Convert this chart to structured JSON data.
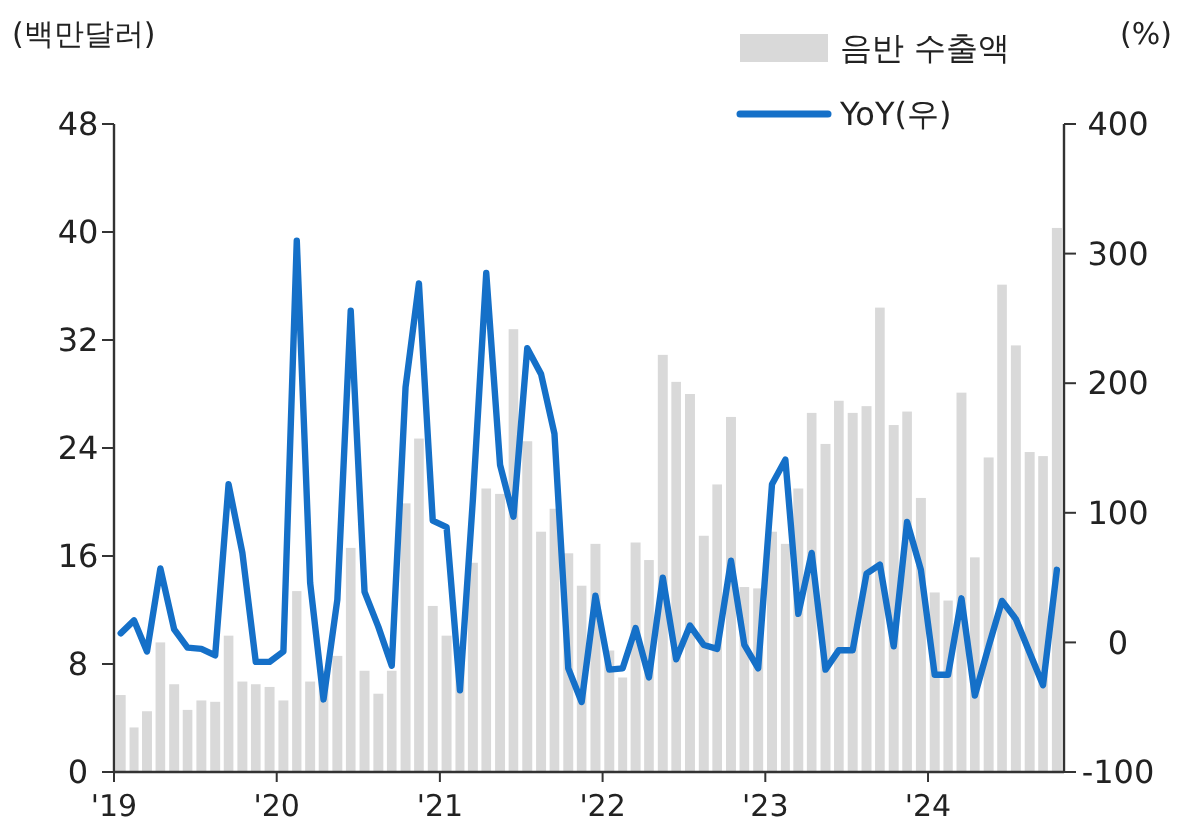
{
  "chart_data": {
    "type": "bar",
    "ylabel": "(백만달러)",
    "y2label": "(%)",
    "x": [
      "2019-01-16",
      "2019-02-15",
      "2019-03-16",
      "2019-04-15",
      "2019-05-16",
      "2019-06-15",
      "2019-07-16",
      "2019-08-16",
      "2019-09-15",
      "2019-10-16",
      "2019-11-15",
      "2019-12-16",
      "2020-01-16",
      "2020-02-15",
      "2020-03-16",
      "2020-04-15",
      "2020-05-16",
      "2020-06-15",
      "2020-07-16",
      "2020-08-16",
      "2020-09-15",
      "2020-10-16",
      "2020-11-15",
      "2020-12-16",
      "2021-01-16",
      "2021-02-15",
      "2021-03-16",
      "2021-04-15",
      "2021-05-16",
      "2021-06-15",
      "2021-07-16",
      "2021-08-16",
      "2021-09-15",
      "2021-10-16",
      "2021-11-15",
      "2021-12-16",
      "2022-01-16",
      "2022-02-15",
      "2022-03-16",
      "2022-04-15",
      "2022-05-16",
      "2022-06-15",
      "2022-07-16",
      "2022-08-16",
      "2022-09-15",
      "2022-10-16",
      "2022-11-15",
      "2022-12-16",
      "2023-01-16",
      "2023-02-15",
      "2023-03-16",
      "2023-04-15",
      "2023-05-16",
      "2023-06-15",
      "2023-07-16",
      "2023-08-16",
      "2023-09-15",
      "2023-10-16",
      "2023-11-15",
      "2023-12-16",
      "2024-01-16",
      "2024-02-15",
      "2024-03-16",
      "2024-04-15",
      "2024-05-16",
      "2024-06-15",
      "2024-07-16",
      "2024-08-16",
      "2024-09-15",
      "2024-10-16"
    ],
    "series": [
      {
        "name": "음반 수출액",
        "color": "#d9d9d9",
        "values": [
          5.7,
          3.3,
          4.5,
          9.6,
          6.5,
          4.6,
          5.3,
          5.2,
          10.1,
          6.7,
          6.5,
          6.3,
          5.3,
          13.4,
          6.7,
          7.5,
          8.6,
          16.6,
          7.5,
          5.8,
          7.5,
          19.9,
          24.7,
          12.3,
          10.1,
          8,
          15.5,
          21,
          20.6,
          32.8,
          24.5,
          17.8,
          19.5,
          16.2,
          13.8,
          16.9,
          9,
          7,
          17,
          15.7,
          30.9,
          28.9,
          28,
          17.5,
          21.3,
          26.3,
          13.7,
          13.6,
          17.8,
          16.9,
          21,
          26.6,
          24.3,
          27.5,
          26.6,
          27.1,
          34.4,
          25.7,
          26.7,
          20.3,
          13.3,
          12.7,
          28.1,
          15.9,
          23.3,
          36.1,
          31.6,
          23.7,
          23.4,
          40.3
        ]
      },
      {
        "name": "YoY(우)",
        "type": "line",
        "axis": "y2",
        "color": "#1570c8",
        "values": [
          7,
          17,
          -7,
          57,
          10,
          -4,
          -5,
          -10,
          122,
          69,
          -15,
          -15,
          -7,
          310,
          46,
          -44,
          33,
          256,
          39,
          12,
          -18,
          197,
          277,
          94,
          89,
          -37,
          110,
          285,
          137,
          97,
          227,
          207,
          161,
          -20,
          -46,
          36,
          -21,
          -20,
          11,
          -27,
          50,
          -13,
          13,
          -2,
          -5,
          63,
          -2,
          -20,
          122,
          141,
          22,
          69,
          -21,
          -6,
          -6,
          53,
          60,
          -3,
          93,
          56,
          -25,
          -25,
          34,
          -41,
          -3,
          32,
          18,
          -8,
          -33,
          56
        ]
      }
    ],
    "xlim": [
      "2019-01",
      "2024-11"
    ],
    "xticks": [
      {
        "value": "2019-01",
        "label": "'19"
      },
      {
        "value": "2020-01",
        "label": "'20"
      },
      {
        "value": "2021-01",
        "label": "'21"
      },
      {
        "value": "2022-01",
        "label": "'22"
      },
      {
        "value": "2023-01",
        "label": "'23"
      },
      {
        "value": "2024-01",
        "label": "'24"
      }
    ],
    "ylim": [
      0,
      48
    ],
    "yticks": [
      0,
      8,
      16,
      24,
      32,
      40,
      48
    ],
    "y2lim": [
      -100,
      400
    ],
    "y2ticks": [
      -100,
      0,
      100,
      200,
      300,
      400
    ],
    "legend": "top right",
    "grid": false,
    "line_style": "solid",
    "marker": "none"
  }
}
